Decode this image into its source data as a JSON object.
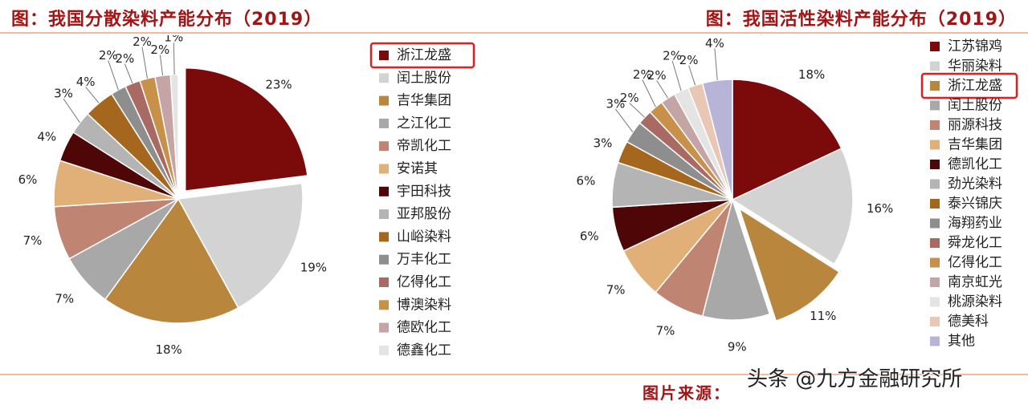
{
  "chart_data": [
    {
      "type": "pie",
      "title": "图：我国分散染料产能分布（2019）",
      "highlight": "浙江龙盛",
      "slices": [
        {
          "label": "浙江龙盛",
          "value": 23,
          "display": "23%",
          "color": "#7b0a0a"
        },
        {
          "label": "闰土股份",
          "value": 19,
          "display": "19%",
          "color": "#d3d3d3"
        },
        {
          "label": "吉华集团",
          "value": 18,
          "display": "18%",
          "color": "#b9863e"
        },
        {
          "label": "之江化工",
          "value": 7,
          "display": "7%",
          "color": "#a8a8a8"
        },
        {
          "label": "帝凯化工",
          "value": 7,
          "display": "7%",
          "color": "#c08472"
        },
        {
          "label": "安诺其",
          "value": 6,
          "display": "6%",
          "color": "#e0b078"
        },
        {
          "label": "宇田科技",
          "value": 4,
          "display": "4%",
          "color": "#4f0606"
        },
        {
          "label": "亚邦股份",
          "value": 3,
          "display": "3%",
          "color": "#b4b4b4"
        },
        {
          "label": "山峪染料",
          "value": 4,
          "display": "4%",
          "color": "#a5661e"
        },
        {
          "label": "万丰化工",
          "value": 2,
          "display": "2%",
          "color": "#8e8e8e"
        },
        {
          "label": "亿得化工",
          "value": 2,
          "display": "2%",
          "color": "#a86a62"
        },
        {
          "label": "博澳染料",
          "value": 2,
          "display": "2%",
          "color": "#c7914a"
        },
        {
          "label": "德欧化工",
          "value": 2,
          "display": "2%",
          "color": "#c4a4a4"
        },
        {
          "label": "德鑫化工",
          "value": 1,
          "display": "1%",
          "color": "#e4e4e4"
        }
      ]
    },
    {
      "type": "pie",
      "title": "图：我国活性染料产能分布（2019）",
      "highlight": "浙江龙盛",
      "slices": [
        {
          "label": "江苏锦鸡",
          "value": 18,
          "display": "18%",
          "color": "#7b0a0a"
        },
        {
          "label": "华丽染料",
          "value": 16,
          "display": "16%",
          "color": "#d3d3d3"
        },
        {
          "label": "浙江龙盛",
          "value": 11,
          "display": "11%",
          "color": "#b9863e"
        },
        {
          "label": "闰土股份",
          "value": 9,
          "display": "9%",
          "color": "#a8a8a8"
        },
        {
          "label": "丽源科技",
          "value": 7,
          "display": "7%",
          "color": "#c08472"
        },
        {
          "label": "吉华集团",
          "value": 7,
          "display": "7%",
          "color": "#e0b078"
        },
        {
          "label": "德凯化工",
          "value": 6,
          "display": "6%",
          "color": "#4f0606"
        },
        {
          "label": "劲光染料",
          "value": 6,
          "display": "6%",
          "color": "#b4b4b4"
        },
        {
          "label": "泰兴锦庆",
          "value": 3,
          "display": "3%",
          "color": "#a5661e"
        },
        {
          "label": "海翔药业",
          "value": 3,
          "display": "3%",
          "color": "#8e8e8e"
        },
        {
          "label": "舜龙化工",
          "value": 2,
          "display": "2%",
          "color": "#a86a62"
        },
        {
          "label": "亿得化工",
          "value": 2,
          "display": "2%",
          "color": "#c7914a"
        },
        {
          "label": "南京虹光",
          "value": 2,
          "display": "2%",
          "color": "#c4a4a4"
        },
        {
          "label": "桃源染料",
          "value": 2,
          "display": "2%",
          "color": "#e4e4e4"
        },
        {
          "label": "德美科",
          "value": 2,
          "display": "2%",
          "color": "#e8c8b4"
        },
        {
          "label": "其他",
          "value": 4,
          "display": "4%",
          "color": "#b8b4d8"
        }
      ]
    }
  ],
  "source": "图片来源：",
  "watermark": "头条 @九方金融研究所"
}
